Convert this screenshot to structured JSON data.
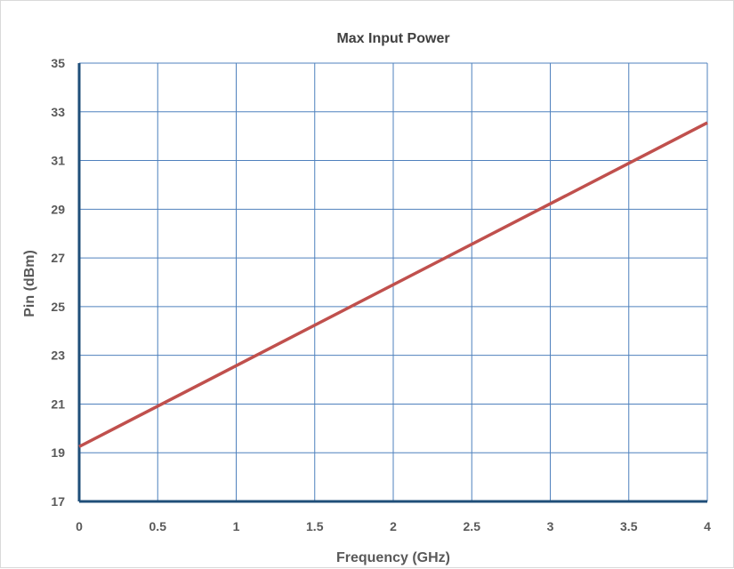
{
  "chart_data": {
    "type": "line",
    "title": "Max Input Power",
    "xlabel": "Frequency (GHz)",
    "ylabel": "Pin (dBm)",
    "xlim": [
      0,
      4
    ],
    "ylim": [
      17,
      35
    ],
    "x_ticks": [
      "0",
      "0.5",
      "1",
      "1.5",
      "2",
      "2.5",
      "3",
      "3.5",
      "4"
    ],
    "y_ticks": [
      "17",
      "19",
      "21",
      "23",
      "25",
      "27",
      "29",
      "31",
      "33",
      "35"
    ],
    "grid": true,
    "legend": "none",
    "series": [
      {
        "color": "#c0504d",
        "x": [
          0,
          4
        ],
        "y": [
          19.25,
          32.55
        ]
      }
    ],
    "colors": {
      "grid": "#4f81bd",
      "axis": "#1f4e79",
      "line": "#c0504d"
    }
  }
}
